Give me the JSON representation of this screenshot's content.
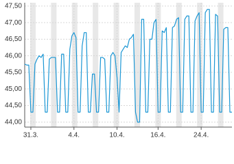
{
  "chart_data": {
    "type": "line",
    "color": "#1a96d4",
    "grid": true,
    "categories": [
      null,
      null,
      null,
      "31.3.",
      null,
      null,
      null,
      null,
      null,
      null,
      null,
      null,
      null,
      null,
      null,
      null,
      null,
      null,
      null,
      null,
      null,
      null,
      null,
      null,
      "4.4.",
      null,
      null,
      null,
      null,
      null,
      null,
      null,
      null,
      null,
      null,
      null,
      null,
      null,
      null,
      null,
      null,
      null,
      null,
      null,
      null,
      "10.4.",
      null,
      null,
      null,
      null,
      null,
      null,
      null,
      null,
      null,
      null,
      null,
      null,
      null,
      null,
      null,
      null,
      null,
      null,
      null,
      "16.4.",
      null,
      null,
      null,
      null,
      null,
      null,
      null,
      null,
      null,
      null,
      null,
      null,
      null,
      null,
      null,
      null,
      null,
      null,
      null,
      null,
      "24.4.",
      null,
      null,
      null,
      null,
      null,
      null,
      null,
      null,
      null,
      null,
      null,
      null,
      null,
      null,
      null
    ],
    "values": [
      45.75,
      45.72,
      45.72,
      44.3,
      44.3,
      45.75,
      45.9,
      46.0,
      45.95,
      46.05,
      44.3,
      44.3,
      45.9,
      45.95,
      45.95,
      45.95,
      44.3,
      44.3,
      46.05,
      46.05,
      44.3,
      44.3,
      46.2,
      46.6,
      46.7,
      46.55,
      44.3,
      44.3,
      46.3,
      46.7,
      46.7,
      44.3,
      44.3,
      45.45,
      45.45,
      44.3,
      44.3,
      45.95,
      45.95,
      45.9,
      44.3,
      44.3,
      46.0,
      46.1,
      46.0,
      45.35,
      44.3,
      46.1,
      46.2,
      46.3,
      46.25,
      46.5,
      46.55,
      46.65,
      44.3,
      44.0,
      44.0,
      47.1,
      47.1,
      44.3,
      44.3,
      46.5,
      46.5,
      47.0,
      47.1,
      44.3,
      44.3,
      46.75,
      46.7,
      46.85,
      44.3,
      44.3,
      46.85,
      46.9,
      47.1,
      47.15,
      44.3,
      44.3,
      47.1,
      47.2,
      47.2,
      44.3,
      44.3,
      47.05,
      47.2,
      47.3,
      44.3,
      44.3,
      47.3,
      47.4,
      47.4,
      44.3,
      44.3,
      47.25,
      47.2,
      44.3,
      44.3,
      46.8,
      46.85,
      46.85,
      44.3,
      44.3
    ],
    "ylim": [
      43.85,
      47.6
    ],
    "yticks": [
      {
        "value": 44.0,
        "label": "44,00"
      },
      {
        "value": 44.5,
        "label": "44,50"
      },
      {
        "value": 45.0,
        "label": "45,00"
      },
      {
        "value": 45.5,
        "label": "45,50"
      },
      {
        "value": 46.0,
        "label": "46,00"
      },
      {
        "value": 46.5,
        "label": "46,50"
      },
      {
        "value": 47.0,
        "label": "47,00"
      },
      {
        "value": 47.5,
        "label": "47,50"
      }
    ]
  }
}
